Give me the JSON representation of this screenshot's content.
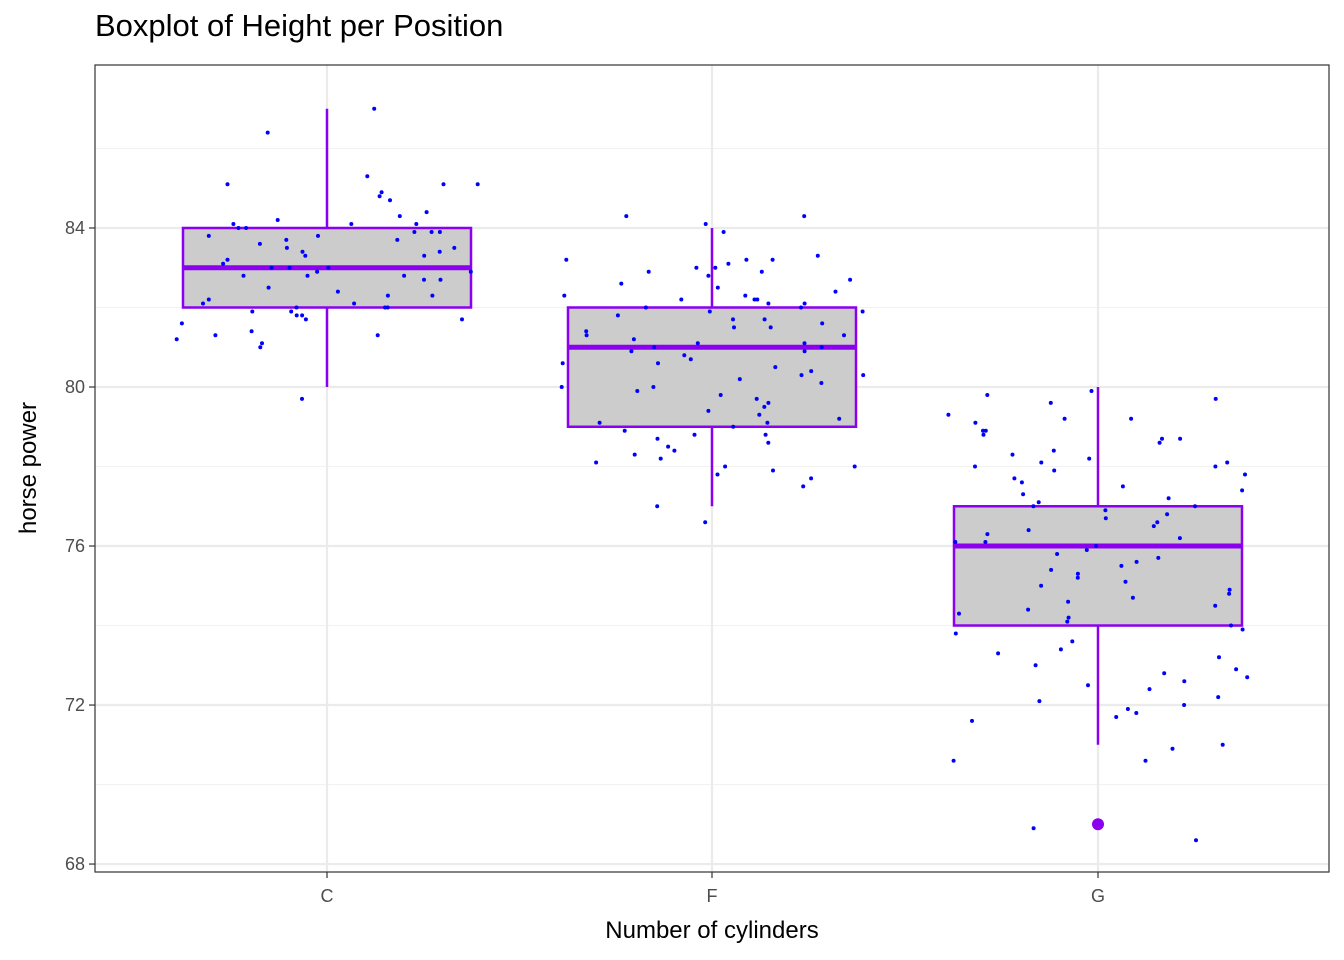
{
  "chart_data": {
    "type": "boxplot",
    "title": "Boxplot of Height per Position",
    "xlabel": "Number of cylinders",
    "ylabel": "horse power",
    "categories": [
      "C",
      "F",
      "G"
    ],
    "ylim": [
      67.8,
      88.1
    ],
    "yticks": [
      68,
      72,
      76,
      80,
      84
    ],
    "grid": true,
    "boxes": [
      {
        "category": "C",
        "whisker_low": 80,
        "q1": 82,
        "median": 83,
        "q3": 84,
        "whisker_high": 87,
        "outliers": []
      },
      {
        "category": "F",
        "whisker_low": 77,
        "q1": 79,
        "median": 81,
        "q3": 82,
        "whisker_high": 84,
        "outliers": []
      },
      {
        "category": "G",
        "whisker_low": 71,
        "q1": 74,
        "median": 76,
        "q3": 77,
        "whisker_high": 80,
        "outliers": [
          69
        ]
      }
    ],
    "jitter_points": {
      "C": [
        87,
        86.4,
        85.3,
        85.1,
        84.9,
        84.8,
        85.1,
        85.1,
        84.7,
        84.4,
        84.3,
        84.2,
        84.1,
        84.1,
        84.1,
        84.0,
        84.0,
        83.9,
        83.9,
        83.9,
        83.8,
        83.8,
        83.7,
        83.7,
        83.6,
        83.5,
        83.5,
        83.4,
        83.4,
        83.3,
        83.3,
        83.2,
        83.1,
        83.0,
        83.0,
        83.0,
        82.9,
        82.9,
        82.8,
        82.8,
        82.8,
        82.7,
        82.7,
        82.5,
        82.4,
        82.3,
        82.3,
        82.2,
        82.1,
        82.1,
        82.0,
        82.0,
        82.0,
        81.9,
        81.9,
        81.8,
        81.8,
        81.7,
        81.7,
        81.6,
        81.4,
        81.3,
        81.3,
        81.2,
        81.1,
        81.0,
        79.7
      ],
      "F": [
        84.3,
        84.3,
        84.1,
        83.9,
        83.3,
        83.2,
        83.2,
        83.2,
        83.1,
        83.0,
        83.0,
        82.9,
        82.9,
        82.8,
        82.7,
        82.6,
        82.5,
        82.4,
        82.3,
        82.3,
        82.2,
        82.2,
        82.2,
        82.1,
        82.1,
        82.0,
        82.0,
        81.9,
        81.9,
        81.8,
        81.7,
        81.7,
        81.6,
        81.5,
        81.5,
        81.4,
        81.3,
        81.3,
        81.2,
        81.1,
        81.1,
        81.0,
        81.0,
        80.9,
        80.9,
        80.8,
        80.7,
        80.6,
        80.6,
        80.5,
        80.4,
        80.3,
        80.3,
        80.2,
        80.1,
        80.0,
        80.0,
        79.9,
        79.8,
        79.7,
        79.6,
        79.5,
        79.4,
        79.3,
        79.2,
        79.1,
        79.1,
        79.0,
        78.9,
        78.8,
        78.8,
        78.7,
        78.6,
        78.5,
        78.4,
        78.3,
        78.2,
        78.1,
        78.0,
        78.0,
        77.9,
        77.8,
        77.7,
        77.5,
        77.0,
        76.6
      ],
      "G": [
        79.9,
        79.8,
        79.7,
        79.6,
        79.3,
        79.2,
        79.2,
        79.1,
        78.9,
        78.9,
        78.8,
        78.7,
        78.7,
        78.6,
        78.4,
        78.3,
        78.2,
        78.1,
        78.1,
        78.0,
        78.0,
        77.9,
        77.8,
        77.7,
        77.6,
        77.5,
        77.4,
        77.3,
        77.2,
        77.1,
        77.0,
        77.0,
        76.9,
        76.8,
        76.7,
        76.6,
        76.5,
        76.4,
        76.3,
        76.2,
        76.1,
        76.1,
        76.0,
        75.9,
        75.8,
        75.7,
        75.6,
        75.5,
        75.4,
        75.3,
        75.2,
        75.1,
        75.0,
        74.9,
        74.8,
        74.7,
        74.6,
        74.5,
        74.4,
        74.3,
        74.2,
        74.1,
        74.0,
        73.9,
        73.8,
        73.6,
        73.4,
        73.3,
        73.2,
        73.0,
        72.9,
        72.8,
        72.7,
        72.6,
        72.5,
        72.4,
        72.2,
        72.1,
        72.0,
        71.9,
        71.8,
        71.7,
        71.6,
        71.0,
        70.9,
        70.6,
        70.6,
        68.9,
        68.6
      ]
    },
    "colors": {
      "box_fill": "#cccccc",
      "box_line": "#8b00ee",
      "points": "#0000ff",
      "grid_major": "#ebebeb",
      "grid_minor": "#f2f2f2",
      "panel_border": "#333333",
      "tick_text": "#4d4d4d"
    }
  }
}
